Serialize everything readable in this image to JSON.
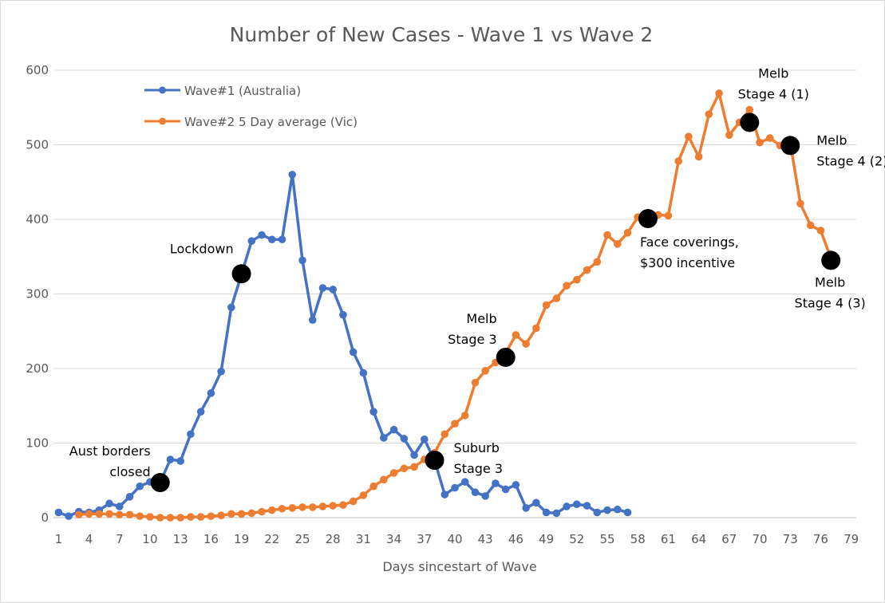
{
  "chart_data": {
    "type": "line",
    "title": "Number of New Cases - Wave 1 vs Wave 2",
    "xlabel": "Days sincestart of Wave",
    "ylabel": "",
    "ylim": [
      0,
      600
    ],
    "xlim": [
      1,
      79
    ],
    "y_ticks": [
      0,
      100,
      200,
      300,
      400,
      500,
      600
    ],
    "x_ticks": [
      1,
      4,
      7,
      10,
      13,
      16,
      19,
      22,
      25,
      28,
      31,
      34,
      37,
      40,
      43,
      46,
      49,
      52,
      55,
      58,
      61,
      64,
      67,
      70,
      73,
      76,
      79
    ],
    "grid": "horizontal",
    "legend_position": "top-left",
    "series": [
      {
        "name": "Wave#1 (Australia)",
        "color": "#4472C4",
        "x": [
          1,
          2,
          3,
          4,
          5,
          6,
          7,
          8,
          9,
          10,
          11,
          12,
          13,
          14,
          15,
          16,
          17,
          18,
          19,
          20,
          21,
          22,
          23,
          24,
          25,
          26,
          27,
          28,
          29,
          30,
          31,
          32,
          33,
          34,
          35,
          36,
          37,
          38,
          39,
          40,
          41,
          42,
          43,
          44,
          45,
          46,
          47,
          48,
          49,
          50,
          51,
          52,
          53,
          54,
          55,
          56,
          57
        ],
        "values": [
          7,
          2,
          8,
          7,
          10,
          19,
          15,
          28,
          42,
          48,
          47,
          78,
          76,
          112,
          142,
          167,
          196,
          282,
          326,
          371,
          379,
          373,
          373,
          460,
          345,
          265,
          308,
          306,
          272,
          222,
          194,
          142,
          107,
          118,
          106,
          84,
          105,
          77,
          31,
          40,
          48,
          34,
          29,
          46,
          38,
          44,
          13,
          20,
          7,
          6,
          15,
          18,
          16,
          7,
          10,
          11,
          7
        ]
      },
      {
        "name": "Wave#2 5 Day average (Vic)",
        "color": "#ED7D31",
        "x": [
          3,
          4,
          5,
          6,
          7,
          8,
          9,
          10,
          11,
          12,
          13,
          14,
          15,
          16,
          17,
          18,
          19,
          20,
          21,
          22,
          23,
          24,
          25,
          26,
          27,
          28,
          29,
          30,
          31,
          32,
          33,
          34,
          35,
          36,
          37,
          38,
          39,
          40,
          41,
          42,
          43,
          44,
          45,
          46,
          47,
          48,
          49,
          50,
          51,
          52,
          53,
          54,
          55,
          56,
          57,
          58,
          59,
          60,
          61,
          62,
          63,
          64,
          65,
          66,
          67,
          68,
          69,
          70,
          71,
          72,
          73,
          74,
          75,
          76,
          77
        ],
        "values": [
          4,
          5,
          5,
          5,
          4,
          4,
          2,
          1,
          0,
          0,
          0,
          1,
          1,
          2,
          3,
          5,
          5,
          6,
          8,
          10,
          12,
          13,
          14,
          14,
          15,
          16,
          17,
          22,
          30,
          42,
          51,
          60,
          66,
          68,
          78,
          87,
          112,
          126,
          137,
          181,
          197,
          208,
          221,
          245,
          233,
          254,
          285,
          294,
          311,
          319,
          332,
          343,
          379,
          367,
          382,
          403,
          409,
          406,
          405,
          478,
          511,
          484,
          541,
          569,
          513,
          530,
          547,
          503,
          509,
          499,
          503,
          421,
          392,
          385,
          348
        ]
      }
    ],
    "annotations": [
      {
        "label_lines": [
          "Aust borders",
          "closed"
        ],
        "x": 11,
        "y": 47
      },
      {
        "label_lines": [
          "Lockdown"
        ],
        "x": 19,
        "y": 327
      },
      {
        "label_lines": [
          "Suburb",
          "Stage 3"
        ],
        "x": 38,
        "y": 77
      },
      {
        "label_lines": [
          "Melb",
          "Stage 3"
        ],
        "x": 45,
        "y": 215
      },
      {
        "label_lines": [
          "Face coverings,",
          "$300 incentive"
        ],
        "x": 59,
        "y": 401
      },
      {
        "label_lines": [
          "Melb",
          "Stage 4 (1)"
        ],
        "x": 69,
        "y": 530
      },
      {
        "label_lines": [
          "Melb",
          "Stage 4 (2)"
        ],
        "x": 73,
        "y": 499
      },
      {
        "label_lines": [
          "Melb",
          "Stage 4 (3)"
        ],
        "x": 77,
        "y": 345
      }
    ],
    "annotation_marker_color": "#000000"
  }
}
